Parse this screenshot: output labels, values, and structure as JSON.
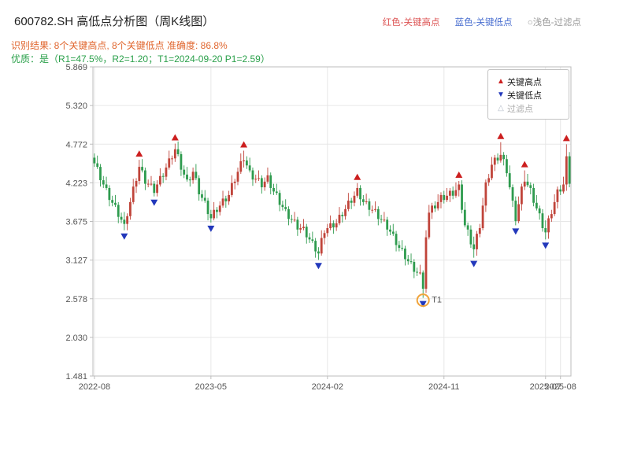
{
  "header": {
    "title": "600782.SH 高低点分析图（周K线图）",
    "legend_top": {
      "high": "红色-关键高点",
      "low": "蓝色-关键低点",
      "filter": "○浅色-过滤点"
    },
    "result_line": "识别结果: 8个关键高点, 8个关键低点  准确度: 86.8%",
    "quality_line": "优质：是（R1=47.5%，R2=1.20；T1=2024-09-20 P1=2.59）"
  },
  "legend_box": {
    "high_label": "关键高点",
    "low_label": "关键低点",
    "filter_label": "过滤点"
  },
  "colors": {
    "up": "#c0443a",
    "down": "#2e9b4e",
    "key_high": "#cc1f1f",
    "key_low": "#2238bb",
    "filtered": "#b5bdc9",
    "grid": "#e7e7e7",
    "spine": "#bdbdbd",
    "tick_text": "#555555",
    "t1": "#f0a43c",
    "result_text": "#e0662e",
    "quality_text": "#2aa04a"
  },
  "chart_data": {
    "type": "candlestick",
    "symbol": "600782.SH",
    "title": "600782.SH 高低点分析图（周K线图）",
    "period": "weekly",
    "ylim": [
      1.481,
      5.869
    ],
    "yticks": [
      5.869,
      5.32,
      4.772,
      4.223,
      3.675,
      3.127,
      2.578,
      2.03,
      1.481
    ],
    "xticks": [
      {
        "idx": 0,
        "label": "2022-08"
      },
      {
        "idx": 39,
        "label": "2023-05"
      },
      {
        "idx": 78,
        "label": "2024-02"
      },
      {
        "idx": 117,
        "label": "2024-11"
      },
      {
        "idx": 151,
        "label": "2025-07"
      },
      {
        "idx": 156,
        "label": "2025-08"
      }
    ],
    "first_open": 4.58,
    "closes": [
      4.5,
      4.45,
      4.26,
      4.2,
      4.15,
      3.98,
      3.94,
      3.91,
      3.74,
      3.7,
      3.64,
      3.75,
      3.95,
      4.17,
      4.25,
      4.45,
      4.4,
      4.21,
      4.21,
      4.21,
      4.08,
      4.2,
      4.32,
      4.31,
      4.44,
      4.57,
      4.57,
      4.7,
      4.63,
      4.41,
      4.34,
      4.27,
      4.26,
      4.38,
      4.29,
      4.06,
      4.01,
      3.97,
      3.78,
      3.72,
      3.84,
      3.81,
      3.9,
      4.0,
      3.96,
      4.05,
      4.22,
      4.24,
      4.38,
      4.53,
      4.54,
      4.47,
      4.4,
      4.27,
      4.28,
      4.29,
      4.16,
      4.24,
      4.33,
      4.15,
      4.1,
      4.08,
      3.91,
      3.88,
      3.85,
      3.71,
      3.7,
      3.7,
      3.56,
      3.58,
      3.6,
      3.45,
      3.42,
      3.4,
      3.25,
      3.22,
      3.44,
      3.51,
      3.58,
      3.65,
      3.59,
      3.65,
      3.77,
      3.75,
      3.85,
      3.97,
      3.94,
      4.04,
      4.15,
      3.99,
      3.95,
      3.96,
      3.84,
      3.84,
      3.85,
      3.71,
      3.7,
      3.7,
      3.56,
      3.53,
      3.5,
      3.34,
      3.3,
      3.29,
      3.14,
      3.11,
      3.1,
      2.96,
      2.95,
      2.95,
      2.72,
      3.45,
      3.8,
      3.9,
      3.86,
      3.95,
      4.05,
      3.98,
      4.04,
      4.11,
      4.04,
      4.12,
      4.2,
      3.84,
      3.62,
      3.56,
      3.35,
      3.28,
      3.5,
      3.58,
      3.9,
      4.23,
      4.29,
      4.48,
      4.58,
      4.54,
      4.62,
      4.56,
      4.36,
      4.16,
      3.97,
      3.68,
      3.92,
      4.17,
      4.24,
      4.19,
      4.15,
      3.94,
      3.86,
      3.79,
      3.58,
      3.52,
      3.72,
      3.78,
      3.95,
      4.13,
      4.1,
      4.2,
      4.6,
      4.21
    ],
    "high_off": [
      0.06,
      0.11,
      0.04
    ],
    "low_off": [
      0.05,
      0.03,
      0.09
    ],
    "overrides": {
      "10": {
        "low": 3.55
      },
      "15": {
        "high": 4.55
      },
      "20": {
        "low": 4.03
      },
      "27": {
        "high": 4.78
      },
      "39": {
        "low": 3.66
      },
      "50": {
        "high": 4.68
      },
      "75": {
        "low": 3.13
      },
      "88": {
        "high": 4.22
      },
      "110": {
        "low": 2.59,
        "high": 2.98
      },
      "111": {
        "low": 2.66,
        "high": 3.55
      },
      "122": {
        "high": 4.25
      },
      "127": {
        "low": 3.16
      },
      "136": {
        "high": 4.8
      },
      "141": {
        "low": 3.62
      },
      "144": {
        "high": 4.4
      },
      "151": {
        "low": 3.42
      },
      "158": {
        "high": 4.77
      }
    },
    "key_high_idx": [
      15,
      27,
      50,
      88,
      122,
      136,
      144,
      158
    ],
    "key_low_idx": [
      10,
      20,
      39,
      75,
      110,
      127,
      141,
      151
    ],
    "key_high_count": 8,
    "key_low_count": 8,
    "accuracy": "86.8%",
    "t1": {
      "idx": 110,
      "label": "T1",
      "date": "2024-09-20",
      "price": 2.59
    }
  }
}
